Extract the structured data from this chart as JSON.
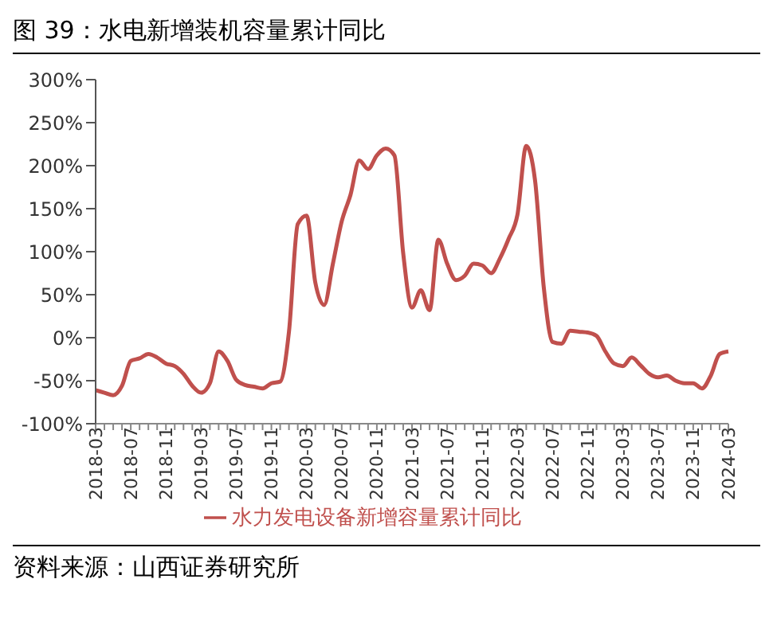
{
  "chart_data": {
    "type": "line",
    "title": "图 39：水电新增装机容量累计同比",
    "categories": [
      "2018-03",
      null,
      null,
      null,
      "2018-07",
      null,
      null,
      null,
      "2018-11",
      null,
      null,
      null,
      "2019-03",
      null,
      null,
      null,
      "2019-07",
      null,
      null,
      null,
      "2019-11",
      null,
      null,
      null,
      "2020-03",
      null,
      null,
      null,
      "2020-07",
      null,
      null,
      null,
      "2020-11",
      null,
      null,
      null,
      "2021-03",
      null,
      null,
      null,
      "2021-07",
      null,
      null,
      null,
      "2021-11",
      null,
      null,
      null,
      "2022-03",
      null,
      null,
      null,
      "2022-07",
      null,
      null,
      null,
      "2022-11",
      null,
      null,
      null,
      "2023-03",
      null,
      null,
      null,
      "2023-07",
      null,
      null,
      null,
      "2023-11",
      null,
      null,
      null,
      "2024-03"
    ],
    "series": [
      {
        "name": "水力发电设备新增容量累计同比",
        "color": "#c0504d",
        "values": [
          -61,
          -64,
          -67,
          -56,
          -27,
          -24,
          -19,
          -23,
          -30,
          -33,
          -42,
          -56,
          -64,
          -53,
          -16,
          -27,
          -49,
          -55,
          -57,
          -59,
          -53,
          -51,
          7,
          132,
          142,
          64,
          38,
          86,
          135,
          166,
          206,
          196,
          212,
          220,
          212,
          98,
          35,
          55,
          32,
          114,
          86,
          67,
          72,
          86,
          84,
          75,
          92,
          115,
          143,
          223,
          183,
          58,
          -5,
          -7,
          8,
          7,
          6,
          2,
          -16,
          -30,
          -33,
          -23,
          -32,
          -42,
          -46,
          -44,
          -50,
          -53,
          -53,
          -59,
          -44,
          -19,
          -16
        ]
      }
    ],
    "ylim": [
      -100,
      300
    ],
    "yticks": [
      {
        "value": -100,
        "label": "-100%"
      },
      {
        "value": -50,
        "label": "-50%"
      },
      {
        "value": 0,
        "label": "0%"
      },
      {
        "value": 50,
        "label": "50%"
      },
      {
        "value": 100,
        "label": "100%"
      },
      {
        "value": 150,
        "label": "150%"
      },
      {
        "value": 200,
        "label": "200%"
      },
      {
        "value": 250,
        "label": "250%"
      },
      {
        "value": 300,
        "label": "300%"
      }
    ],
    "grid": false,
    "legend": "bottom",
    "marker": "none",
    "line_style": "solid",
    "annotations": [
      "资料来源：山西证券研究所"
    ]
  }
}
